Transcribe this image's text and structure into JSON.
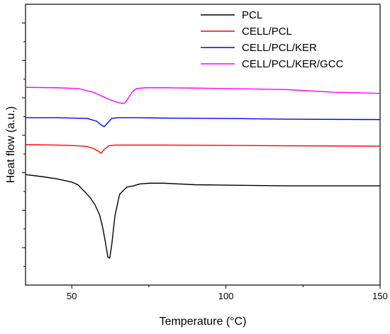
{
  "chart_data": {
    "type": "line",
    "title": "",
    "xlabel": "Temperature (°C)",
    "ylabel": "Heat flow (a.u.)",
    "xlim": [
      35,
      150
    ],
    "ylim": [
      0,
      7.5
    ],
    "x_ticks": [
      50,
      100,
      150
    ],
    "x_tick_labels": [
      "50",
      "100",
      "150"
    ],
    "y_tick_labels_shown": false,
    "grid": false,
    "legend_position": "top-right",
    "series": [
      {
        "name": "PCL",
        "color": "#000000",
        "x": [
          35,
          40,
          45,
          50,
          52,
          53.5,
          54.5,
          56,
          57.5,
          59,
          60,
          61,
          61.7,
          62.3,
          63,
          64,
          65.5,
          67,
          68,
          70,
          72,
          75,
          80,
          90,
          100,
          110,
          120,
          130,
          140,
          150
        ],
        "y": [
          2.95,
          2.9,
          2.84,
          2.75,
          2.68,
          2.55,
          2.47,
          2.33,
          2.15,
          1.88,
          1.55,
          1.1,
          0.75,
          0.72,
          1.1,
          1.85,
          2.42,
          2.55,
          2.62,
          2.65,
          2.7,
          2.72,
          2.72,
          2.68,
          2.67,
          2.66,
          2.65,
          2.65,
          2.65,
          2.65
        ]
      },
      {
        "name": "CELL/PCL",
        "color": "#ff0000",
        "x": [
          35,
          45,
          52,
          55,
          57,
          58.5,
          59.5,
          60.5,
          62,
          64,
          70,
          80,
          100,
          120,
          150
        ],
        "y": [
          3.75,
          3.74,
          3.72,
          3.7,
          3.65,
          3.58,
          3.52,
          3.62,
          3.72,
          3.74,
          3.74,
          3.74,
          3.73,
          3.72,
          3.71
        ]
      },
      {
        "name": "CELL/PCL/KER",
        "color": "#0000ff",
        "x": [
          35,
          45,
          55,
          58,
          59.5,
          60.5,
          61.5,
          63,
          65,
          70,
          80,
          100,
          120,
          150
        ],
        "y": [
          4.47,
          4.47,
          4.45,
          4.38,
          4.28,
          4.23,
          4.32,
          4.45,
          4.47,
          4.47,
          4.46,
          4.45,
          4.43,
          4.42
        ]
      },
      {
        "name": "CELL/PCL/KER/GCC",
        "color": "#ff00ff",
        "x": [
          35,
          45,
          52,
          57,
          61,
          64,
          66,
          67,
          68,
          69.5,
          71,
          74,
          80,
          100,
          120,
          135,
          150
        ],
        "y": [
          5.28,
          5.27,
          5.25,
          5.15,
          5.0,
          4.9,
          4.86,
          4.85,
          4.95,
          5.15,
          5.25,
          5.27,
          5.27,
          5.25,
          5.22,
          5.15,
          5.12
        ]
      }
    ]
  }
}
